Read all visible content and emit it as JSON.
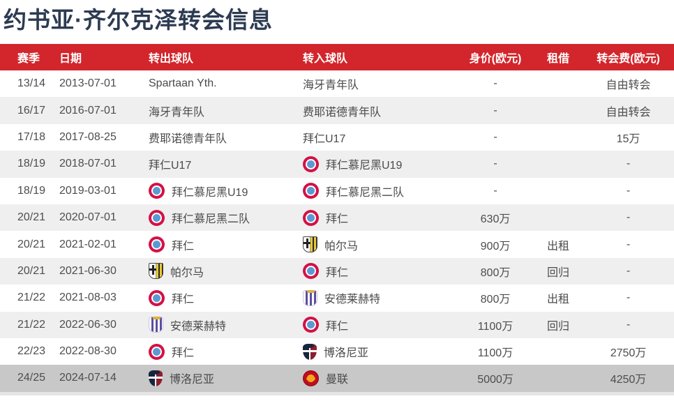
{
  "title": "约书亚·齐尔克泽转会信息",
  "colors": {
    "header_bg": "#d2262c",
    "title_text": "#2d3b52",
    "row_stripe": "#efefef",
    "highlight_row": "#c8c8c8",
    "body_text": "#4d4d4d"
  },
  "icons": {
    "bayern": "bayern-munich-crest",
    "parma": "parma-crest",
    "anderlecht": "anderlecht-crest",
    "bologna": "bologna-crest",
    "manutd": "manchester-united-crest"
  },
  "table": {
    "columns": [
      "赛季",
      "日期",
      "转出球队",
      "转入球队",
      "身价(欧元)",
      "租借",
      "转会费(欧元)"
    ],
    "rows": [
      {
        "season": "13/14",
        "date": "2013-07-01",
        "from": {
          "name": "Spartaan Yth.",
          "icon": null
        },
        "to": {
          "name": "海牙青年队",
          "icon": null
        },
        "value": "-",
        "loan": "",
        "fee": "自由转会",
        "highlight": false
      },
      {
        "season": "16/17",
        "date": "2016-07-01",
        "from": {
          "name": "海牙青年队",
          "icon": null
        },
        "to": {
          "name": "费耶诺德青年队",
          "icon": null
        },
        "value": "-",
        "loan": "",
        "fee": "自由转会",
        "highlight": false
      },
      {
        "season": "17/18",
        "date": "2017-08-25",
        "from": {
          "name": "费耶诺德青年队",
          "icon": null
        },
        "to": {
          "name": "拜仁U17",
          "icon": null
        },
        "value": "-",
        "loan": "",
        "fee": "15万",
        "highlight": false
      },
      {
        "season": "18/19",
        "date": "2018-07-01",
        "from": {
          "name": "拜仁U17",
          "icon": null
        },
        "to": {
          "name": "拜仁慕尼黑U19",
          "icon": "bayern"
        },
        "value": "-",
        "loan": "",
        "fee": "-",
        "highlight": false
      },
      {
        "season": "18/19",
        "date": "2019-03-01",
        "from": {
          "name": "拜仁慕尼黑U19",
          "icon": "bayern"
        },
        "to": {
          "name": "拜仁慕尼黑二队",
          "icon": "bayern"
        },
        "value": "-",
        "loan": "",
        "fee": "-",
        "highlight": false
      },
      {
        "season": "20/21",
        "date": "2020-07-01",
        "from": {
          "name": "拜仁慕尼黑二队",
          "icon": "bayern"
        },
        "to": {
          "name": "拜仁",
          "icon": "bayern"
        },
        "value": "630万",
        "loan": "",
        "fee": "-",
        "highlight": false
      },
      {
        "season": "20/21",
        "date": "2021-02-01",
        "from": {
          "name": "拜仁",
          "icon": "bayern"
        },
        "to": {
          "name": "帕尔马",
          "icon": "parma"
        },
        "value": "900万",
        "loan": "出租",
        "fee": "-",
        "highlight": false
      },
      {
        "season": "20/21",
        "date": "2021-06-30",
        "from": {
          "name": "帕尔马",
          "icon": "parma"
        },
        "to": {
          "name": "拜仁",
          "icon": "bayern"
        },
        "value": "800万",
        "loan": "回归",
        "fee": "-",
        "highlight": false
      },
      {
        "season": "21/22",
        "date": "2021-08-03",
        "from": {
          "name": "拜仁",
          "icon": "bayern"
        },
        "to": {
          "name": "安德莱赫特",
          "icon": "anderlecht"
        },
        "value": "800万",
        "loan": "出租",
        "fee": "-",
        "highlight": false
      },
      {
        "season": "21/22",
        "date": "2022-06-30",
        "from": {
          "name": "安德莱赫特",
          "icon": "anderlecht"
        },
        "to": {
          "name": "拜仁",
          "icon": "bayern"
        },
        "value": "1100万",
        "loan": "回归",
        "fee": "-",
        "highlight": false
      },
      {
        "season": "22/23",
        "date": "2022-08-30",
        "from": {
          "name": "拜仁",
          "icon": "bayern"
        },
        "to": {
          "name": "博洛尼亚",
          "icon": "bologna"
        },
        "value": "1100万",
        "loan": "",
        "fee": "2750万",
        "highlight": false
      },
      {
        "season": "24/25",
        "date": "2024-07-14",
        "from": {
          "name": "博洛尼亚",
          "icon": "bologna"
        },
        "to": {
          "name": "曼联",
          "icon": "manutd"
        },
        "value": "5000万",
        "loan": "",
        "fee": "4250万",
        "highlight": true
      }
    ]
  }
}
